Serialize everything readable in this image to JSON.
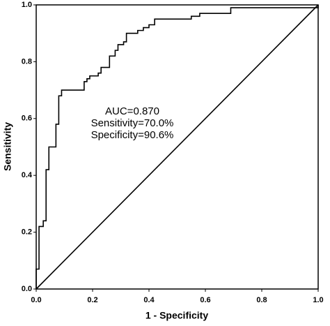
{
  "chart_data": {
    "type": "line",
    "xlabel": "1 - Specificity",
    "ylabel": "Sensitivity",
    "annotations": [
      "AUC=0.870",
      "Sensitivity=70.0%",
      "Specificity=90.6%"
    ],
    "xlim": [
      0,
      1
    ],
    "ylim": [
      0,
      1
    ],
    "xticks": [
      {
        "value": 0,
        "label": "0.0"
      },
      {
        "value": 0.2,
        "label": "0.2"
      },
      {
        "value": 0.4,
        "label": "0.4"
      },
      {
        "value": 0.6,
        "label": "0.6"
      },
      {
        "value": 0.8,
        "label": "0.8"
      },
      {
        "value": 1,
        "label": "1.0"
      }
    ],
    "yticks": [
      {
        "value": 0,
        "label": "0.0"
      },
      {
        "value": 0.2,
        "label": "0.2"
      },
      {
        "value": 0.4,
        "label": "0.4"
      },
      {
        "value": 0.6,
        "label": "0.6"
      },
      {
        "value": 0.8,
        "label": "0.8"
      },
      {
        "value": 1,
        "label": "1.0"
      }
    ],
    "grid": false,
    "series": [
      {
        "color": "#000000",
        "x": [
          0,
          0,
          0.01,
          0.01,
          0.025,
          0.025,
          0.035,
          0.035,
          0.045,
          0.045,
          0.07,
          0.07,
          0.08,
          0.08,
          0.09,
          0.09,
          0.17,
          0.17,
          0.18,
          0.18,
          0.19,
          0.19,
          0.22,
          0.22,
          0.23,
          0.23,
          0.26,
          0.26,
          0.28,
          0.28,
          0.29,
          0.29,
          0.31,
          0.31,
          0.32,
          0.32,
          0.36,
          0.36,
          0.38,
          0.38,
          0.4,
          0.4,
          0.42,
          0.42,
          0.55,
          0.55,
          0.58,
          0.58,
          0.69,
          0.69,
          1,
          1
        ],
        "values": [
          0,
          0.07,
          0.07,
          0.22,
          0.22,
          0.24,
          0.24,
          0.42,
          0.42,
          0.5,
          0.5,
          0.58,
          0.58,
          0.68,
          0.68,
          0.7,
          0.7,
          0.73,
          0.73,
          0.74,
          0.74,
          0.75,
          0.75,
          0.76,
          0.76,
          0.78,
          0.78,
          0.82,
          0.82,
          0.84,
          0.84,
          0.86,
          0.86,
          0.87,
          0.87,
          0.9,
          0.9,
          0.91,
          0.91,
          0.92,
          0.92,
          0.93,
          0.93,
          0.95,
          0.95,
          0.96,
          0.96,
          0.97,
          0.97,
          0.99,
          0.99,
          1
        ]
      },
      {
        "color": "#000000",
        "x": [
          0,
          1
        ],
        "values": [
          0,
          1
        ]
      }
    ]
  }
}
